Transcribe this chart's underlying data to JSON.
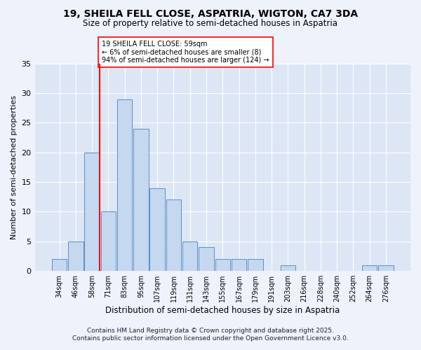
{
  "title1": "19, SHEILA FELL CLOSE, ASPATRIA, WIGTON, CA7 3DA",
  "title2": "Size of property relative to semi-detached houses in Aspatria",
  "xlabel": "Distribution of semi-detached houses by size in Aspatria",
  "ylabel": "Number of semi-detached properties",
  "bar_labels": [
    "34sqm",
    "46sqm",
    "58sqm",
    "71sqm",
    "83sqm",
    "95sqm",
    "107sqm",
    "119sqm",
    "131sqm",
    "143sqm",
    "155sqm",
    "167sqm",
    "179sqm",
    "191sqm",
    "203sqm",
    "216sqm",
    "228sqm",
    "240sqm",
    "252sqm",
    "264sqm",
    "276sqm"
  ],
  "bar_values": [
    2,
    5,
    20,
    10,
    29,
    24,
    14,
    12,
    5,
    4,
    2,
    2,
    2,
    0,
    1,
    0,
    0,
    0,
    0,
    1,
    1
  ],
  "bar_color": "#c5d8f0",
  "bar_edgecolor": "#5b8ec4",
  "redline_index": 2,
  "annotation_title": "19 SHEILA FELL CLOSE: 59sqm",
  "annotation_line1": "← 6% of semi-detached houses are smaller (8)",
  "annotation_line2": "94% of semi-detached houses are larger (124) →",
  "ylim": [
    0,
    35
  ],
  "yticks": [
    0,
    5,
    10,
    15,
    20,
    25,
    30,
    35
  ],
  "background_color": "#eef2fb",
  "plot_bg_color": "#dce6f5",
  "footer_line1": "Contains HM Land Registry data © Crown copyright and database right 2025.",
  "footer_line2": "Contains public sector information licensed under the Open Government Licence v3.0."
}
